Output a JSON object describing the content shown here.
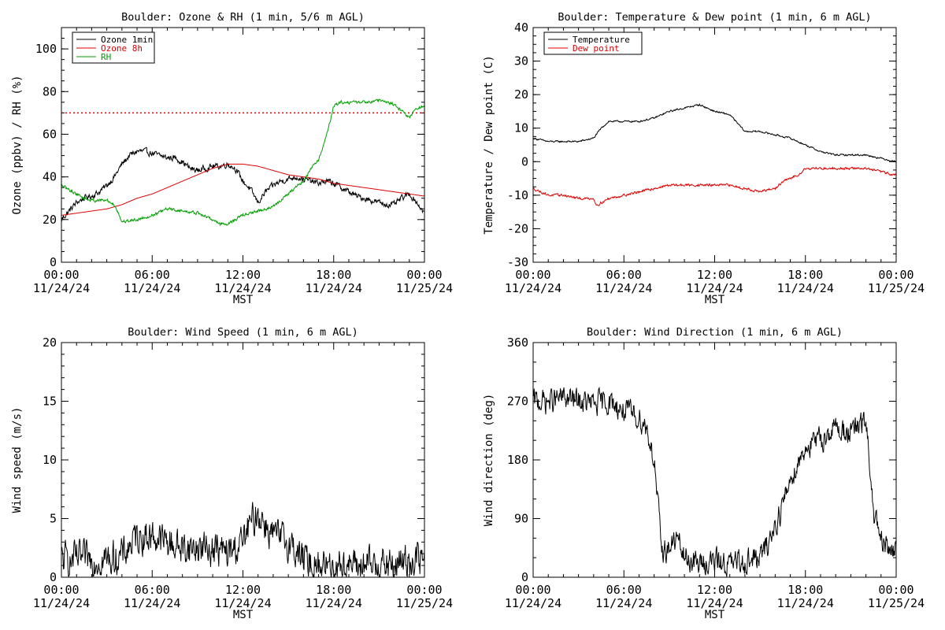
{
  "chart_data": [
    {
      "type": "line",
      "title": "Boulder: Ozone & RH (1 min, 5/6 m AGL)",
      "xlabel": "MST",
      "ylabel": "Ozone (ppbv) / RH (%)",
      "xlim": [
        "11/24/24 00:00",
        "11/25/24 00:00"
      ],
      "ylim": [
        0,
        110
      ],
      "yticks": [
        0,
        20,
        40,
        60,
        80,
        100
      ],
      "xticks": [
        {
          "time": "00:00",
          "date": "11/24/24"
        },
        {
          "time": "06:00",
          "date": "11/24/24"
        },
        {
          "time": "12:00",
          "date": "11/24/24"
        },
        {
          "time": "18:00",
          "date": "11/24/24"
        },
        {
          "time": "00:00",
          "date": "11/25/24"
        }
      ],
      "legend_position": "top-left",
      "reference_lines": [
        {
          "y": 70,
          "style": "dotted",
          "color": "#e00000"
        }
      ],
      "series": [
        {
          "name": "Ozone 1min",
          "color": "#000000",
          "noise": 1.4,
          "x": [
            0,
            0.5,
            1,
            1.5,
            2,
            2.5,
            3,
            3.5,
            4,
            4.5,
            5,
            5.5,
            6,
            6.5,
            7,
            7.5,
            8,
            8.5,
            9,
            9.5,
            10,
            10.5,
            11,
            11.5,
            12,
            12.5,
            13,
            13.5,
            14,
            14.5,
            15,
            15.5,
            16,
            16.5,
            17,
            17.5,
            18,
            18.5,
            19,
            19.5,
            20,
            20.5,
            21,
            21.5,
            22,
            22.5,
            23,
            23.5,
            24
          ],
          "values": [
            20,
            24,
            28,
            30,
            31,
            33,
            36,
            40,
            46,
            50,
            52,
            52,
            51,
            50,
            49,
            49,
            47,
            44,
            43,
            44,
            45,
            45,
            46,
            44,
            38,
            34,
            28,
            33,
            36,
            38,
            39,
            40,
            39,
            38,
            37,
            38,
            37,
            35,
            33,
            31,
            30,
            29,
            28,
            27,
            27,
            30,
            32,
            28,
            23
          ]
        },
        {
          "name": "Ozone 8h",
          "color": "#e00000",
          "noise": 0,
          "x": [
            0,
            1,
            2,
            3,
            4,
            5,
            6,
            7,
            8,
            9,
            10,
            11,
            12,
            13,
            14,
            15,
            16,
            17,
            18,
            19,
            20,
            21,
            22,
            23,
            24
          ],
          "values": [
            22,
            23,
            24,
            25,
            27,
            30,
            32,
            35,
            38,
            41,
            44,
            46,
            46,
            45,
            43,
            41,
            40,
            39,
            37,
            36,
            35,
            34,
            33,
            32,
            31
          ]
        },
        {
          "name": "RH",
          "color": "#00a000",
          "noise": 0.7,
          "x": [
            0,
            0.5,
            1,
            1.5,
            2,
            2.5,
            3,
            3.5,
            3.7,
            4,
            5,
            6,
            7,
            8,
            9,
            10,
            10.5,
            11,
            11.5,
            12,
            13,
            14,
            15,
            16,
            16.5,
            17,
            17.3,
            17.6,
            17.8,
            18,
            18.5,
            19,
            20,
            21,
            22,
            22.5,
            23,
            23.5,
            24
          ],
          "values": [
            36,
            34,
            32,
            30,
            29,
            29,
            29,
            27,
            24,
            19,
            20,
            22,
            25,
            24,
            23,
            20,
            18,
            18,
            20,
            22,
            24,
            26,
            32,
            38,
            44,
            48,
            54,
            62,
            67,
            73,
            75,
            75,
            75,
            76,
            74,
            71,
            68,
            72,
            73
          ]
        }
      ]
    },
    {
      "type": "line",
      "title": "Boulder: Temperature & Dew point (1 min, 6 m AGL)",
      "xlabel": "MST",
      "ylabel": "Temperature / Dew point (C)",
      "xlim": [
        "11/24/24 00:00",
        "11/25/24 00:00"
      ],
      "ylim": [
        -30,
        40
      ],
      "yticks": [
        -30,
        -20,
        -10,
        0,
        10,
        20,
        30,
        40
      ],
      "xticks": [
        {
          "time": "00:00",
          "date": "11/24/24"
        },
        {
          "time": "06:00",
          "date": "11/24/24"
        },
        {
          "time": "12:00",
          "date": "11/24/24"
        },
        {
          "time": "18:00",
          "date": "11/24/24"
        },
        {
          "time": "00:00",
          "date": "11/25/24"
        }
      ],
      "legend_position": "top-left",
      "series": [
        {
          "name": "Temperature",
          "color": "#000000",
          "noise": 0.25,
          "x": [
            0,
            1,
            2,
            3,
            4,
            4.5,
            5,
            5.5,
            6,
            7,
            8,
            9,
            10,
            11,
            12,
            13,
            14,
            15,
            16,
            17,
            18,
            19,
            20,
            21,
            22,
            23,
            24
          ],
          "values": [
            7,
            6,
            6,
            6,
            7,
            10,
            12,
            12,
            12,
            12,
            13,
            15,
            16,
            17,
            15,
            14,
            9,
            9,
            8,
            7,
            5,
            3,
            2,
            2,
            2,
            1,
            0
          ]
        },
        {
          "name": "Dew point",
          "color": "#e00000",
          "noise": 0.35,
          "x": [
            0,
            1,
            2,
            3,
            4,
            4.2,
            5,
            6,
            7,
            8,
            9,
            10,
            11,
            12,
            13,
            14,
            15,
            16,
            16.5,
            17,
            17.5,
            18,
            19,
            20,
            21,
            22,
            23,
            24
          ],
          "values": [
            -8,
            -10,
            -10,
            -11,
            -11,
            -13,
            -11,
            -10,
            -9,
            -8,
            -7,
            -7,
            -7,
            -7,
            -7,
            -8,
            -9,
            -8,
            -6,
            -5,
            -4,
            -2,
            -2,
            -2,
            -2,
            -2,
            -3,
            -4
          ]
        }
      ]
    },
    {
      "type": "line",
      "title": "Boulder: Wind Speed (1 min, 6 m AGL)",
      "xlabel": "MST",
      "ylabel": "Wind speed (m/s)",
      "xlim": [
        "11/24/24 00:00",
        "11/25/24 00:00"
      ],
      "ylim": [
        0,
        20
      ],
      "yticks": [
        0,
        5,
        10,
        15,
        20
      ],
      "xticks": [
        {
          "time": "00:00",
          "date": "11/24/24"
        },
        {
          "time": "06:00",
          "date": "11/24/24"
        },
        {
          "time": "12:00",
          "date": "11/24/24"
        },
        {
          "time": "18:00",
          "date": "11/24/24"
        },
        {
          "time": "00:00",
          "date": "11/25/24"
        }
      ],
      "series": [
        {
          "name": "",
          "color": "#000000",
          "noise": 1.4,
          "floor": 0,
          "x": [
            0,
            1,
            2,
            3,
            4,
            5,
            6,
            7,
            8,
            9,
            10,
            11,
            12,
            12.5,
            13,
            13.5,
            14,
            15,
            16,
            17,
            18,
            19,
            20,
            21,
            22,
            23,
            24
          ],
          "values": [
            1.5,
            1.5,
            1.5,
            1.5,
            1.8,
            3.5,
            3.5,
            3,
            2.5,
            2.5,
            2.5,
            2,
            3,
            4.5,
            5.5,
            4.5,
            3.5,
            3,
            1.5,
            1,
            1,
            1,
            1,
            1,
            1,
            1.5,
            1.5
          ]
        }
      ]
    },
    {
      "type": "line",
      "title": "Boulder: Wind Direction (1 min, 6 m AGL)",
      "xlabel": "MST",
      "ylabel": "Wind direction (deg)",
      "xlim": [
        "11/24/24 00:00",
        "11/25/24 00:00"
      ],
      "ylim": [
        0,
        360
      ],
      "yticks": [
        0,
        90,
        180,
        270,
        360
      ],
      "xticks": [
        {
          "time": "00:00",
          "date": "11/24/24"
        },
        {
          "time": "06:00",
          "date": "11/24/24"
        },
        {
          "time": "12:00",
          "date": "11/24/24"
        },
        {
          "time": "18:00",
          "date": "11/24/24"
        },
        {
          "time": "00:00",
          "date": "11/25/24"
        }
      ],
      "series": [
        {
          "name": "",
          "color": "#000000",
          "noise": 18,
          "floor": 0,
          "ceil": 360,
          "x": [
            0,
            1,
            2,
            3,
            4,
            5,
            6,
            7,
            7.5,
            8,
            8.5,
            9,
            9.5,
            10,
            11,
            12,
            13,
            14,
            15,
            15.5,
            16,
            16.5,
            17,
            18,
            19,
            20,
            21,
            22,
            22.5,
            23,
            24
          ],
          "values": [
            270,
            270,
            275,
            270,
            265,
            270,
            255,
            245,
            230,
            180,
            40,
            45,
            60,
            30,
            20,
            25,
            20,
            25,
            30,
            50,
            80,
            110,
            150,
            200,
            210,
            230,
            220,
            240,
            100,
            50,
            40
          ]
        }
      ]
    }
  ]
}
